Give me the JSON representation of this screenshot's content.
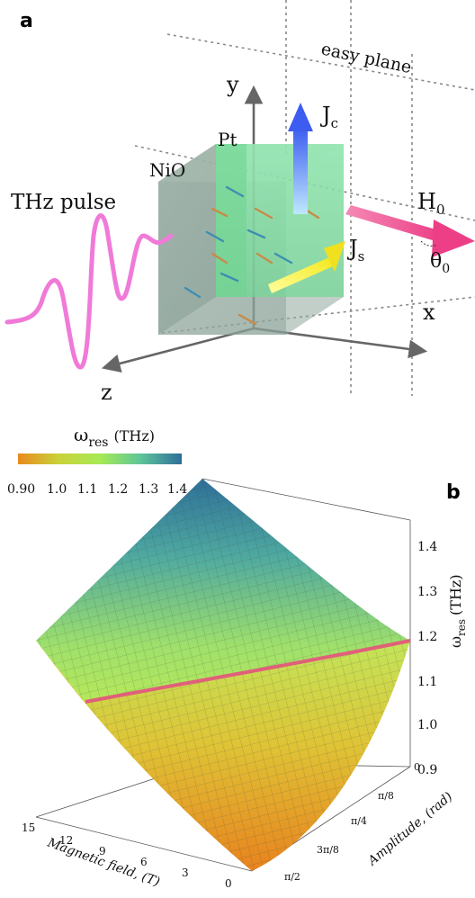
{
  "panel_a": {
    "label": "a",
    "easy_plane": "easy plane",
    "axis_y": "y",
    "axis_x": "x",
    "axis_z": "z",
    "jc_main": "J",
    "jc_sub": "c",
    "js_main": "J",
    "js_sub": "s",
    "h0_main": "H",
    "h0_sub": "0",
    "theta_main": "θ",
    "theta_sub": "0",
    "pt": "Pt",
    "nio": "NiO",
    "thz_pulse": "THz pulse",
    "colors": {
      "nio": "#8fa39a",
      "pt": "#7fe0a2",
      "jc": "#4a6cf0",
      "js": "#f2f250",
      "h0": "#f0569a",
      "pulse": "#f07ad8"
    }
  },
  "panel_b": {
    "label": "b",
    "colorbar": {
      "title_main": "ω",
      "title_sub": "res",
      "title_unit": "(THz)",
      "ticks": [
        "0.90",
        "1.0",
        "1.1",
        "1.2",
        "1.3",
        "1.4"
      ],
      "colors": [
        "#e98a1c",
        "#c9d23a",
        "#a6ea55",
        "#5ec49a",
        "#2e6f99"
      ]
    },
    "z_axis": {
      "label_main": "ω",
      "label_sub": "res",
      "label_unit": "(THz)",
      "ticks": [
        "1.4",
        "1.3",
        "1.2",
        "1.1",
        "1.0",
        "0.9"
      ]
    },
    "field_axis": {
      "label": "Magnetic field, (T)",
      "ticks": [
        "15",
        "12",
        "9",
        "6",
        "3",
        "0"
      ]
    },
    "amplitude_axis": {
      "label": "Amplitude, (rad)",
      "ticks": [
        "0",
        "π/8",
        "π/4",
        "3π/8",
        "π/2"
      ]
    }
  },
  "chart_data": {
    "type": "surface",
    "title": "",
    "x_label": "Magnetic field, (T)",
    "y_label": "Amplitude, (rad)",
    "z_label": "ω_res (THz)",
    "x_range": [
      0,
      15
    ],
    "y_range": [
      0,
      1.5708
    ],
    "z_range": [
      0.9,
      1.4
    ],
    "corner_values": [
      {
        "field_T": 15,
        "amplitude_rad": 0,
        "omega_res_THz": 1.42
      },
      {
        "field_T": 0,
        "amplitude_rad": 0,
        "omega_res_THz": 1.12
      },
      {
        "field_T": 15,
        "amplitude_rad": 1.5708,
        "omega_res_THz": 1.18
      },
      {
        "field_T": 0,
        "amplitude_rad": 1.5708,
        "omega_res_THz": 0.87
      }
    ],
    "highlighted_curve": {
      "description_color": "#e0607a",
      "points": [
        {
          "field_T": 15,
          "amplitude_rad": 0.6,
          "omega_res_THz": 1.11
        },
        {
          "field_T": 0,
          "amplitude_rad": 0,
          "omega_res_THz": 1.12
        }
      ]
    }
  }
}
